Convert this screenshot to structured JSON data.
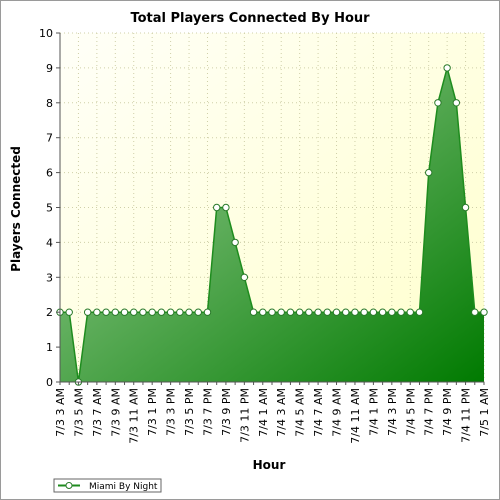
{
  "chart_data": {
    "type": "area",
    "title": "Total Players Connected By Hour",
    "xlabel": "Hour",
    "ylabel": "Players Connected",
    "ylim": [
      0,
      10
    ],
    "yticks": [
      0,
      1,
      2,
      3,
      4,
      5,
      6,
      7,
      8,
      9,
      10
    ],
    "grid": true,
    "legend_position": "bottom-left",
    "categories": [
      "7/3 3 AM",
      "7/3 4 AM",
      "7/3 5 AM",
      "7/3 6 AM",
      "7/3 7 AM",
      "7/3 8 AM",
      "7/3 9 AM",
      "7/3 10 AM",
      "7/3 11 AM",
      "7/3 12 PM",
      "7/3 1 PM",
      "7/3 2 PM",
      "7/3 3 PM",
      "7/3 4 PM",
      "7/3 5 PM",
      "7/3 6 PM",
      "7/3 7 PM",
      "7/3 8 PM",
      "7/3 9 PM",
      "7/3 10 PM",
      "7/3 11 PM",
      "7/4 12 AM",
      "7/4 1 AM",
      "7/4 2 AM",
      "7/4 3 AM",
      "7/4 4 AM",
      "7/4 5 AM",
      "7/4 6 AM",
      "7/4 7 AM",
      "7/4 8 AM",
      "7/4 9 AM",
      "7/4 10 AM",
      "7/4 11 AM",
      "7/4 12 PM",
      "7/4 1 PM",
      "7/4 2 PM",
      "7/4 3 PM",
      "7/4 4 PM",
      "7/4 5 PM",
      "7/4 6 PM",
      "7/4 7 PM",
      "7/4 8 PM",
      "7/4 9 PM",
      "7/4 10 PM",
      "7/4 11 PM",
      "7/5 12 AM",
      "7/5 1 AM"
    ],
    "tick_labels": [
      "7/3 3 AM",
      "7/3 5 AM",
      "7/3 7 AM",
      "7/3 9 AM",
      "7/3 11 AM",
      "7/3 1 PM",
      "7/3 3 PM",
      "7/3 5 PM",
      "7/3 7 PM",
      "7/3 9 PM",
      "7/3 11 PM",
      "7/4 1 AM",
      "7/4 3 AM",
      "7/4 5 AM",
      "7/4 7 AM",
      "7/4 9 AM",
      "7/4 11 AM",
      "7/4 1 PM",
      "7/4 3 PM",
      "7/4 5 PM",
      "7/4 7 PM",
      "7/4 9 PM",
      "7/4 11 PM",
      "7/5 1 AM"
    ],
    "series": [
      {
        "name": "Miami By Night",
        "values": [
          2,
          2,
          0,
          2,
          2,
          2,
          2,
          2,
          2,
          2,
          2,
          2,
          2,
          2,
          2,
          2,
          2,
          5,
          5,
          4,
          3,
          2,
          2,
          2,
          2,
          2,
          2,
          2,
          2,
          2,
          2,
          2,
          2,
          2,
          2,
          2,
          2,
          2,
          2,
          2,
          6,
          8,
          9,
          8,
          5,
          2,
          2
        ]
      }
    ]
  },
  "colors": {
    "plot_background_start": "#fffff8",
    "plot_background_end": "#ffffcc",
    "area_fill_start": "#a6d4a0",
    "area_fill_end": "#007a00",
    "line": "#1e8c1e",
    "marker_fill": "#ffffff",
    "marker_stroke": "#2a7a2a",
    "grid": "#cfcfa8"
  }
}
